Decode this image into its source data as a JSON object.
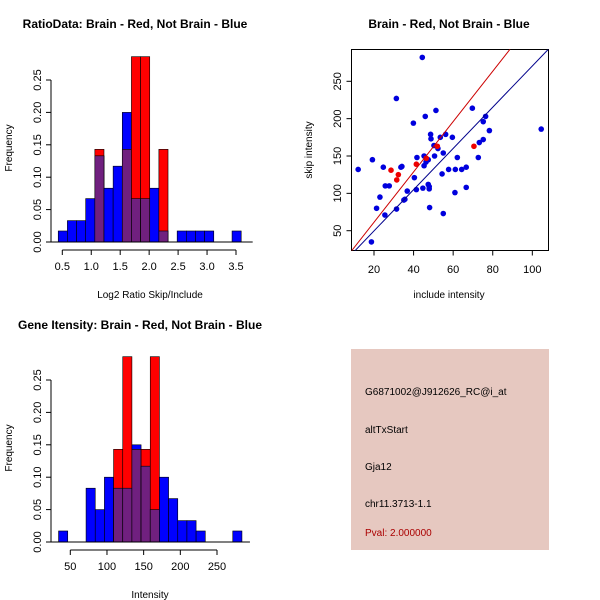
{
  "chart_data": [
    {
      "type": "bar",
      "subtype": "overlaid-histogram",
      "title": "RatioData: Brain - Red, Not Brain - Blue",
      "xlabel": "Log2 Ratio Skip/Include",
      "ylabel": "Frequency",
      "xticks": [
        "0.5",
        "1.0",
        "1.5",
        "2.0",
        "2.5",
        "3.0",
        "3.5"
      ],
      "yticks": [
        "0.00",
        "0.05",
        "0.10",
        "0.15",
        "0.20",
        "0.25"
      ],
      "xlim": [
        0.43,
        3.65
      ],
      "ylim": [
        0,
        0.29
      ],
      "bin_start": 0.43,
      "bin_width": 0.158,
      "series": [
        {
          "name": "Not Brain",
          "color": "#0000ff",
          "values": [
            0.017,
            0.033,
            0.033,
            0.067,
            0.133,
            0.083,
            0.117,
            0.2,
            0.067,
            0.067,
            0.083,
            0.017,
            0,
            0.017,
            0.017,
            0.017,
            0.017,
            0,
            0,
            0.017
          ]
        },
        {
          "name": "Brain",
          "color": "#ff0000",
          "values": [
            0,
            0,
            0,
            0,
            0.143,
            0,
            0,
            0.143,
            0.286,
            0.286,
            0,
            0.143,
            0,
            0,
            0,
            0,
            0,
            0,
            0,
            0
          ]
        }
      ],
      "overlap_color": "#70207f"
    },
    {
      "type": "scatter",
      "title": "Brain - Red, Not Brain - Blue",
      "xlabel": "include intensity",
      "ylabel": "skip intensity",
      "xticks": [
        "20",
        "40",
        "60",
        "80",
        "100"
      ],
      "yticks": [
        "50",
        "100",
        "150",
        "200",
        "250"
      ],
      "xlim": [
        8.7,
        108
      ],
      "ylim": [
        23.2,
        292.8
      ],
      "series": [
        {
          "name": "Not Brain",
          "color": "#0000dd",
          "points": [
            [
              12,
              132
            ],
            [
              44.4,
              282
            ],
            [
              31.3,
              227
            ],
            [
              19.2,
              145
            ],
            [
              24.7,
              135
            ],
            [
              34.1,
              136
            ],
            [
              33.6,
              135
            ],
            [
              39.9,
              194
            ],
            [
              45.9,
              203
            ],
            [
              51.3,
              211
            ],
            [
              69.7,
              214
            ],
            [
              76.4,
              203
            ],
            [
              75.2,
              196
            ],
            [
              78.3,
              184
            ],
            [
              48.6,
              179
            ],
            [
              48.8,
              173
            ],
            [
              56.2,
              179
            ],
            [
              59.6,
              175
            ],
            [
              53.5,
              175
            ],
            [
              104.5,
              186
            ],
            [
              75.2,
              172
            ],
            [
              73.2,
              168
            ],
            [
              50.3,
              164
            ],
            [
              52.3,
              160
            ],
            [
              41.7,
              148
            ],
            [
              45.3,
              150
            ],
            [
              47.4,
              145
            ],
            [
              46.3,
              142
            ],
            [
              45.3,
              137
            ],
            [
              50.6,
              150
            ],
            [
              55,
              154
            ],
            [
              62.1,
              148
            ],
            [
              72.7,
              148
            ],
            [
              57.7,
              132
            ],
            [
              61.1,
              132
            ],
            [
              64.3,
              132
            ],
            [
              66.6,
              135
            ],
            [
              54.4,
              126
            ],
            [
              40.4,
              121
            ],
            [
              47.4,
              112
            ],
            [
              47.9,
              109
            ],
            [
              47.9,
              106
            ],
            [
              44.7,
              107
            ],
            [
              41.4,
              105
            ],
            [
              36.8,
              103
            ],
            [
              35.6,
              92
            ],
            [
              35.1,
              91
            ],
            [
              27.7,
              110
            ],
            [
              25.7,
              110
            ],
            [
              23,
              95
            ],
            [
              21.3,
              80
            ],
            [
              25.5,
              71
            ],
            [
              31.4,
              79
            ],
            [
              48.1,
              81
            ],
            [
              55,
              73
            ],
            [
              66.6,
              108
            ],
            [
              60.9,
              101
            ],
            [
              18.7,
              35
            ]
          ]
        },
        {
          "name": "Brain",
          "color": "#ee0000",
          "points": [
            [
              28.6,
              131
            ],
            [
              32.3,
              125
            ],
            [
              31.5,
              118
            ],
            [
              41.4,
              139
            ],
            [
              46.4,
              147
            ],
            [
              52,
              163
            ],
            [
              70.5,
              163
            ]
          ]
        }
      ],
      "lines": [
        {
          "name": "Not Brain fit",
          "color": "#00008b",
          "slope": 2.76,
          "intercept": -5.5
        },
        {
          "name": "Brain fit",
          "color": "#cc0000",
          "slope": 3.37,
          "intercept": -6.1
        }
      ]
    },
    {
      "type": "bar",
      "subtype": "overlaid-histogram",
      "title": "Gene Itensity: Brain - Red, Not Brain - Blue",
      "xlabel": "Intensity",
      "ylabel": "Frequency",
      "xticks": [
        "50",
        "100",
        "150",
        "200",
        "250"
      ],
      "yticks": [
        "0.00",
        "0.05",
        "0.10",
        "0.15",
        "0.20",
        "0.25"
      ],
      "xlim": [
        34,
        284
      ],
      "ylim": [
        0,
        0.29
      ],
      "bin_start": 34,
      "bin_width": 12.5,
      "series": [
        {
          "name": "Not Brain",
          "color": "#0000ff",
          "values": [
            0.017,
            0,
            0,
            0.083,
            0.05,
            0.1,
            0.083,
            0.083,
            0.15,
            0.117,
            0.05,
            0.1,
            0.067,
            0.033,
            0.033,
            0.017,
            0,
            0,
            0,
            0.017
          ]
        },
        {
          "name": "Brain",
          "color": "#ff0000",
          "values": [
            0,
            0,
            0,
            0,
            0,
            0,
            0.143,
            0.286,
            0.143,
            0.143,
            0.286,
            0,
            0,
            0,
            0,
            0,
            0,
            0,
            0,
            0
          ]
        }
      ],
      "overlap_color": "#70207f"
    }
  ],
  "info_panel": {
    "background": "#e6c8c0",
    "probe_id": "G6871002@J912626_RC@i_at",
    "event_type": "altTxStart",
    "gene": "Gja12",
    "location": "chr11.3713-1.1",
    "pval": "Pval: 2.000000",
    "pval_color": "#aa0000"
  }
}
